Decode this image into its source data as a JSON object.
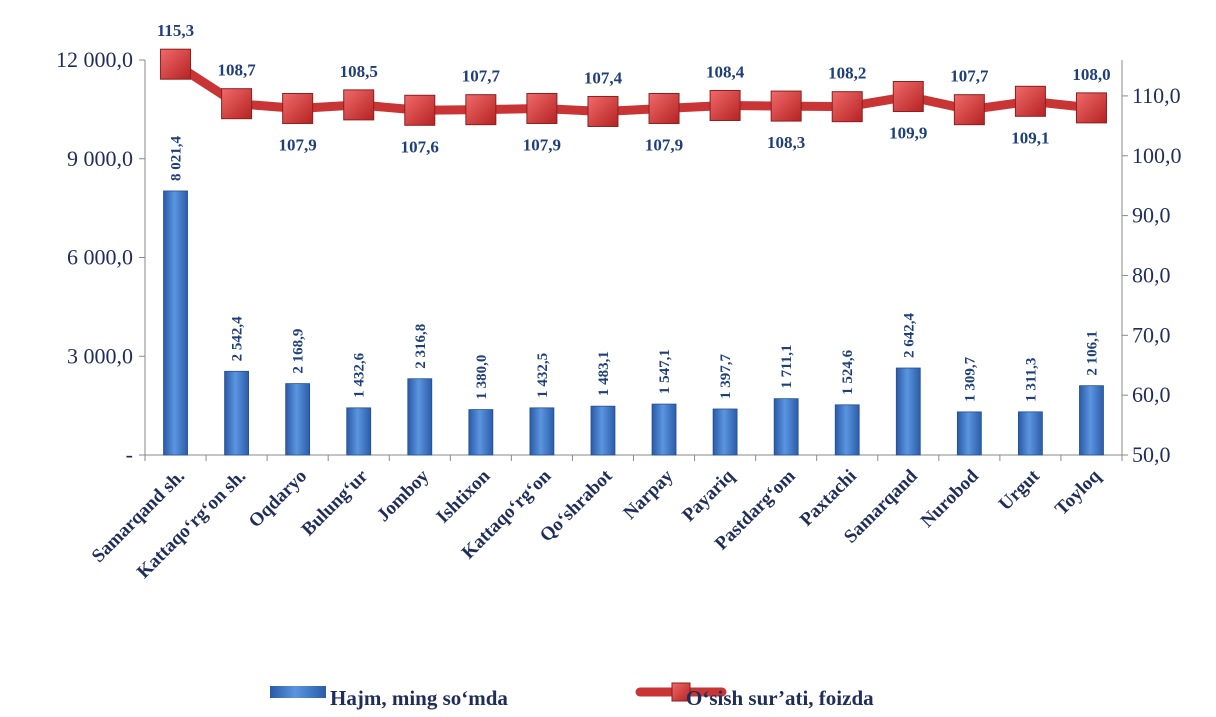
{
  "chart_data": {
    "type": "bar+line",
    "categories": [
      "Samarqand sh.",
      "Kattaqo‘rg‘on sh.",
      "Oqdaryo",
      "Bulung‘ur",
      "Jomboy",
      "Ishtixon",
      "Kattaqo‘rg‘on",
      "Qo‘shrabot",
      "Narpay",
      "Payariq",
      "Pastdarg‘om",
      "Paxtachi",
      "Samarqand",
      "Nurobod",
      "Urgut",
      "Toyloq"
    ],
    "series": [
      {
        "name": "Hajm, ming so‘mda",
        "type": "bar",
        "axis": "left",
        "color": "#3a73c4",
        "values": [
          8021.4,
          2542.4,
          2168.9,
          1432.6,
          2316.8,
          1380.0,
          1432.5,
          1483.1,
          1547.1,
          1397.7,
          1711.1,
          1524.6,
          2642.4,
          1309.7,
          1311.3,
          2106.1
        ],
        "labels": [
          "8 021,4",
          "2 542,4",
          "2 168,9",
          "1 432,6",
          "2 316,8",
          "1 380,0",
          "1 432,5",
          "1 483,1",
          "1 547,1",
          "1 397,7",
          "1 711,1",
          "1 524,6",
          "2 642,4",
          "1 309,7",
          "1 311,3",
          "2 106,1"
        ]
      },
      {
        "name": "O‘sish sur’ati, foizda",
        "type": "line",
        "axis": "right",
        "color": "#d23a3a",
        "values": [
          115.3,
          108.7,
          107.9,
          108.5,
          107.6,
          107.7,
          107.9,
          107.4,
          107.9,
          108.4,
          108.3,
          108.2,
          109.9,
          107.7,
          109.1,
          108.0
        ],
        "labels": [
          "115,3",
          "108,7",
          "107,9",
          "108,5",
          "107,6",
          "107,7",
          "107,9",
          "107,4",
          "107,9",
          "108,4",
          "108,3",
          "108,2",
          "109,9",
          "107,7",
          "109,1",
          "108,0"
        ]
      }
    ],
    "y_left": {
      "ylim": [
        0,
        12000
      ],
      "ticks": [
        "-",
        "3 000,0",
        "6 000,0",
        "9 000,0",
        "12 000,0"
      ]
    },
    "y_right": {
      "ylim": [
        50,
        116
      ],
      "ticks": [
        "50,0",
        "60,0",
        "70,0",
        "80,0",
        "90,0",
        "100,0",
        "110,0"
      ]
    },
    "grid": false,
    "legend_position": "bottom"
  }
}
